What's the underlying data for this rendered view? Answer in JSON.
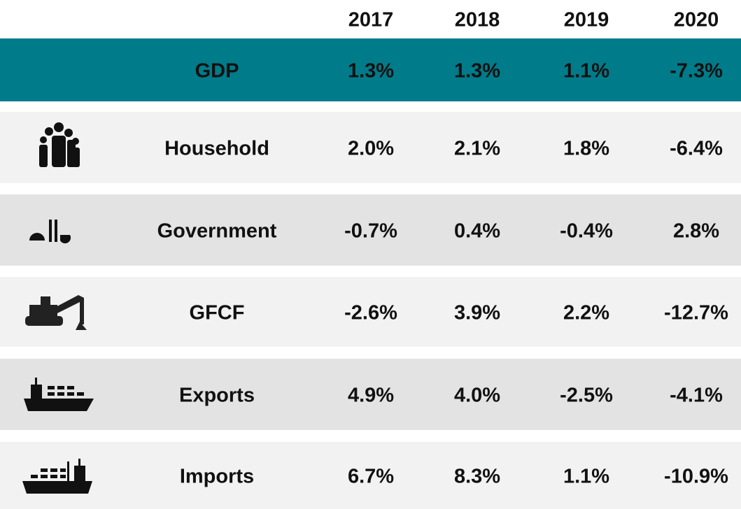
{
  "table": {
    "header": [
      "2017",
      "2018",
      "2019",
      "2020"
    ],
    "rows": [
      {
        "label": "GDP",
        "values": [
          "1.3%",
          "1.3%",
          "1.1%",
          "-7.3%"
        ]
      },
      {
        "label": "Household",
        "values": [
          "2.0%",
          "2.1%",
          "1.8%",
          "-6.4%"
        ]
      },
      {
        "label": "Government",
        "values": [
          "-0.7%",
          "0.4%",
          "-0.4%",
          "2.8%"
        ]
      },
      {
        "label": "GFCF",
        "values": [
          "-2.6%",
          "3.9%",
          "2.2%",
          "-12.7%"
        ]
      },
      {
        "label": "Exports",
        "values": [
          "4.9%",
          "4.0%",
          "-2.5%",
          "-4.1%"
        ]
      },
      {
        "label": "Imports",
        "values": [
          "6.7%",
          "8.3%",
          "1.1%",
          "-10.9%"
        ]
      }
    ]
  }
}
